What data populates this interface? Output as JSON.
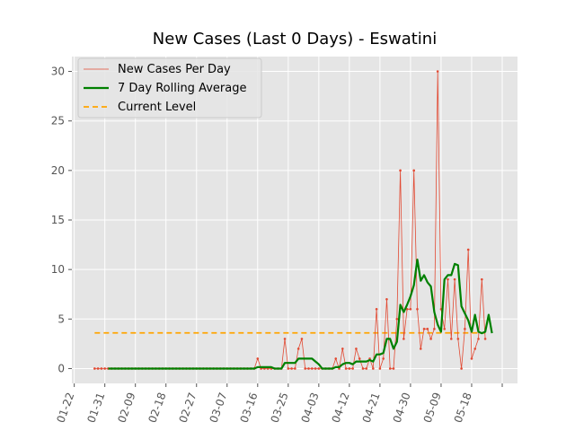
{
  "chart_data": {
    "type": "line",
    "title": "New Cases (Last 0 Days) - Eswatini",
    "start_date": "2020-01-28",
    "ylim": [
      -1.5,
      31.5
    ],
    "yticks": [
      0,
      5,
      10,
      15,
      20,
      25,
      30
    ],
    "xticks": [
      "01-22",
      "01-31",
      "02-09",
      "02-18",
      "02-27",
      "03-07",
      "03-16",
      "03-25",
      "04-03",
      "04-12",
      "04-21",
      "04-30",
      "05-09",
      "05-18"
    ],
    "grid": true,
    "legend_position": "upper-left",
    "colors": {
      "background": "#e5e5e5",
      "grid": "#ffffff",
      "daily": "#e24a33",
      "rolling": "#008000",
      "current": "#ffa500"
    },
    "series": [
      {
        "name": "New Cases Per Day",
        "style": "thin-line-with-dots",
        "values": [
          0,
          0,
          0,
          0,
          0,
          0,
          0,
          0,
          0,
          0,
          0,
          0,
          0,
          0,
          0,
          0,
          0,
          0,
          0,
          0,
          0,
          0,
          0,
          0,
          0,
          0,
          0,
          0,
          0,
          0,
          0,
          0,
          0,
          0,
          0,
          0,
          0,
          0,
          0,
          0,
          0,
          0,
          0,
          0,
          0,
          0,
          0,
          0,
          1,
          0,
          0,
          0,
          0,
          0,
          0,
          0,
          3,
          0,
          0,
          0,
          2,
          3,
          0,
          0,
          0,
          0,
          0,
          0,
          0,
          0,
          0,
          1,
          0,
          2,
          0,
          0,
          0,
          2,
          1,
          0,
          0,
          1,
          0,
          6,
          0,
          1,
          7,
          0,
          0,
          5,
          20,
          3,
          6,
          6,
          20,
          6,
          2,
          4,
          4,
          3,
          4,
          30,
          6,
          4,
          9,
          3,
          9,
          3,
          0,
          4,
          12,
          1,
          2,
          3,
          9,
          3
        ]
      },
      {
        "name": "7 Day Rolling Average",
        "style": "thick-line",
        "values": [
          null,
          null,
          null,
          null,
          0,
          0,
          0,
          0,
          0,
          0,
          0,
          0,
          0,
          0,
          0,
          0,
          0,
          0,
          0,
          0,
          0,
          0,
          0,
          0,
          0,
          0,
          0,
          0,
          0,
          0,
          0,
          0,
          0,
          0,
          0,
          0,
          0,
          0,
          0,
          0,
          0,
          0,
          0,
          0,
          0,
          0,
          0,
          0,
          0.14,
          0.14,
          0.14,
          0.14,
          0.14,
          0,
          0,
          0,
          0.57,
          0.57,
          0.57,
          0.57,
          1,
          1,
          1,
          1,
          1,
          0.71,
          0.43,
          0,
          0,
          0,
          0,
          0.14,
          0.14,
          0.43,
          0.57,
          0.57,
          0.43,
          0.71,
          0.71,
          0.71,
          0.71,
          0.86,
          0.71,
          1.43,
          1.43,
          1.57,
          3.0,
          3.0,
          2.0,
          2.71,
          6.43,
          5.71,
          6.43,
          7.29,
          8.43,
          11.0,
          8.86,
          9.43,
          8.71,
          8.29,
          5.71,
          4.43,
          3.71,
          9.0,
          9.43,
          9.43,
          10.57,
          10.43,
          6.29,
          5.57,
          4.86,
          3.71,
          5.43,
          3.71,
          3.57,
          3.71,
          5.43,
          3.57
        ]
      },
      {
        "name": "Current Level",
        "style": "dashed",
        "value": 3.6
      }
    ]
  }
}
